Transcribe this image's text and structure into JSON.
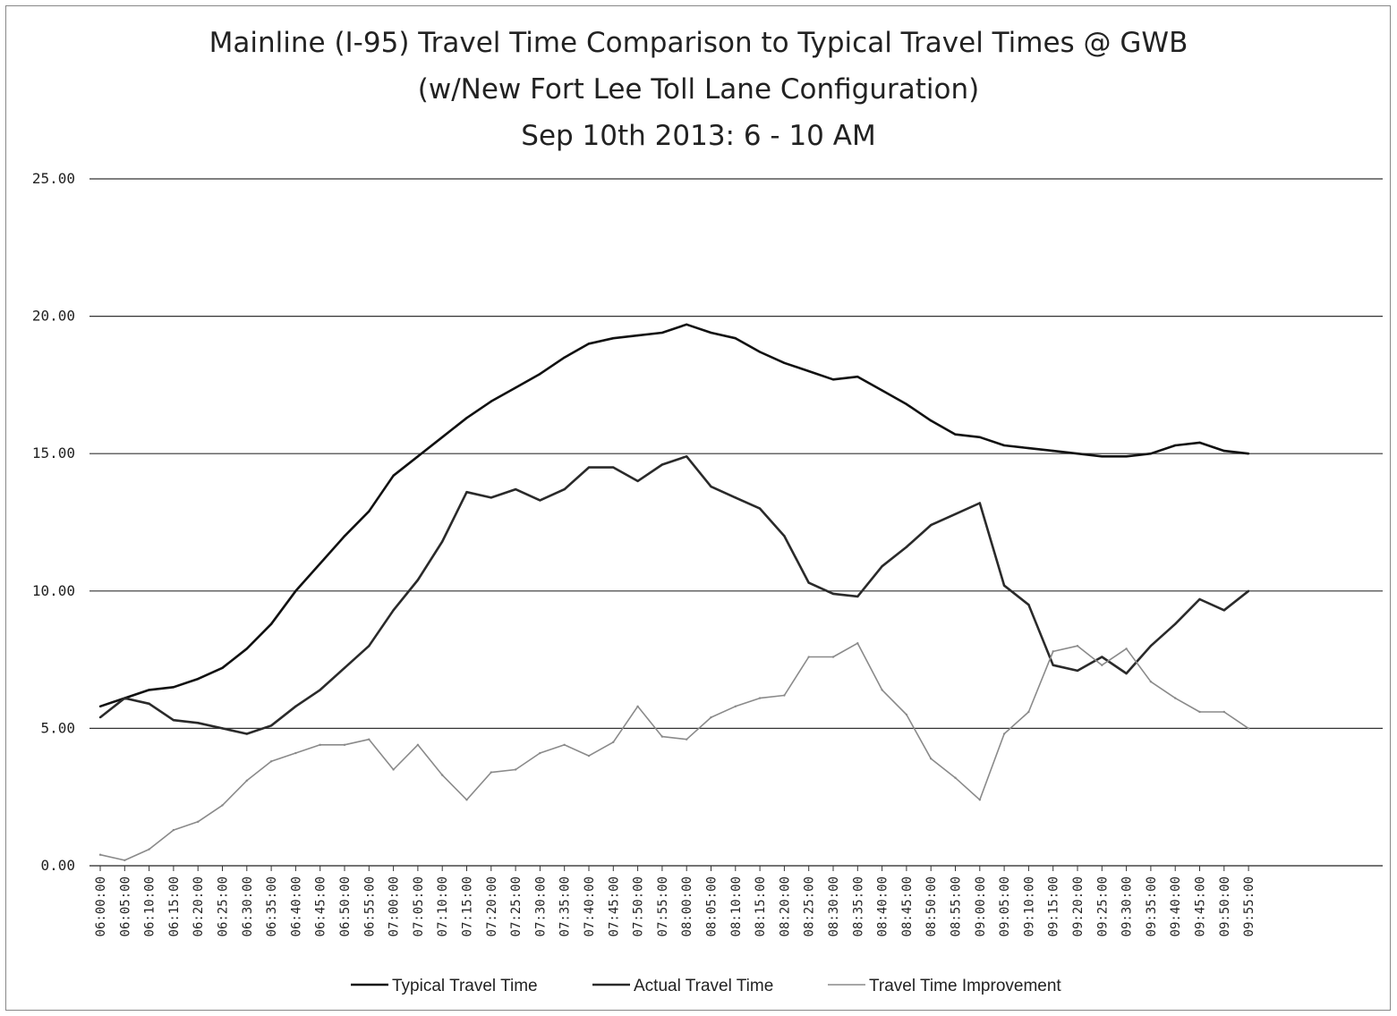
{
  "chart_data": {
    "type": "line",
    "title": "Mainline (I-95) Travel Time Comparison to Typical Travel Times @ GWB",
    "subtitle": "(w/New Fort Lee Toll Lane Configuration)",
    "subtitle2": "Sep 10th 2013:  6 - 10 AM",
    "xlabel": "",
    "ylabel": "",
    "ylim": [
      0,
      25
    ],
    "yticks": [
      "0.00",
      "5.00",
      "10.00",
      "15.00",
      "20.00",
      "25.00"
    ],
    "grid": true,
    "legend_position": "bottom",
    "x": [
      "06:00:00",
      "06:05:00",
      "06:10:00",
      "06:15:00",
      "06:20:00",
      "06:25:00",
      "06:30:00",
      "06:35:00",
      "06:40:00",
      "06:45:00",
      "06:50:00",
      "06:55:00",
      "07:00:00",
      "07:05:00",
      "07:10:00",
      "07:15:00",
      "07:20:00",
      "07:25:00",
      "07:30:00",
      "07:35:00",
      "07:40:00",
      "07:45:00",
      "07:50:00",
      "07:55:00",
      "08:00:00",
      "08:05:00",
      "08:10:00",
      "08:15:00",
      "08:20:00",
      "08:25:00",
      "08:30:00",
      "08:35:00",
      "08:40:00",
      "08:45:00",
      "08:50:00",
      "08:55:00",
      "09:00:00",
      "09:05:00",
      "09:10:00",
      "09:15:00",
      "09:20:00",
      "09:25:00",
      "09:30:00",
      "09:35:00",
      "09:40:00",
      "09:45:00",
      "09:50:00",
      "09:55:00"
    ],
    "series": [
      {
        "name": "Typical Travel Time",
        "color": "#111111",
        "values": [
          5.8,
          6.1,
          6.4,
          6.5,
          6.8,
          7.2,
          7.9,
          8.8,
          10.0,
          11.0,
          12.0,
          12.9,
          14.2,
          14.9,
          15.6,
          16.3,
          16.9,
          17.4,
          17.9,
          18.5,
          19.0,
          19.2,
          19.3,
          19.4,
          19.7,
          19.4,
          19.2,
          18.7,
          18.3,
          18.0,
          17.7,
          17.8,
          17.3,
          16.8,
          16.2,
          15.7,
          15.6,
          15.3,
          15.2,
          15.1,
          15.0,
          14.9,
          14.9,
          15.0,
          15.3,
          15.4,
          15.1,
          15.0
        ]
      },
      {
        "name": "Actual Travel Time",
        "color": "#2a2a2a",
        "values": [
          5.4,
          6.1,
          5.9,
          5.3,
          5.2,
          5.0,
          4.8,
          5.1,
          5.8,
          6.4,
          7.2,
          8.0,
          9.3,
          10.4,
          11.8,
          13.6,
          13.4,
          13.7,
          13.3,
          13.7,
          14.5,
          14.5,
          14.0,
          14.6,
          14.9,
          13.8,
          13.4,
          13.0,
          12.0,
          10.3,
          9.9,
          9.8,
          10.9,
          11.6,
          12.4,
          12.8,
          13.2,
          10.2,
          9.5,
          7.3,
          7.1,
          7.6,
          7.0,
          8.0,
          8.8,
          9.7,
          9.3,
          10.0
        ]
      },
      {
        "name": "Travel Time Improvement",
        "color": "#8a8a8a",
        "values": [
          0.4,
          0.2,
          0.6,
          1.3,
          1.6,
          2.2,
          3.1,
          3.8,
          4.1,
          4.4,
          4.4,
          4.6,
          3.5,
          4.4,
          3.3,
          2.4,
          3.4,
          3.5,
          4.1,
          4.4,
          4.0,
          4.5,
          5.8,
          4.7,
          4.6,
          5.4,
          5.8,
          6.1,
          6.2,
          7.6,
          7.6,
          8.1,
          6.4,
          5.5,
          3.9,
          3.2,
          2.4,
          4.8,
          5.6,
          7.8,
          8.0,
          7.3,
          7.9,
          6.7,
          6.1,
          5.6,
          5.6,
          5.0
        ]
      }
    ]
  }
}
